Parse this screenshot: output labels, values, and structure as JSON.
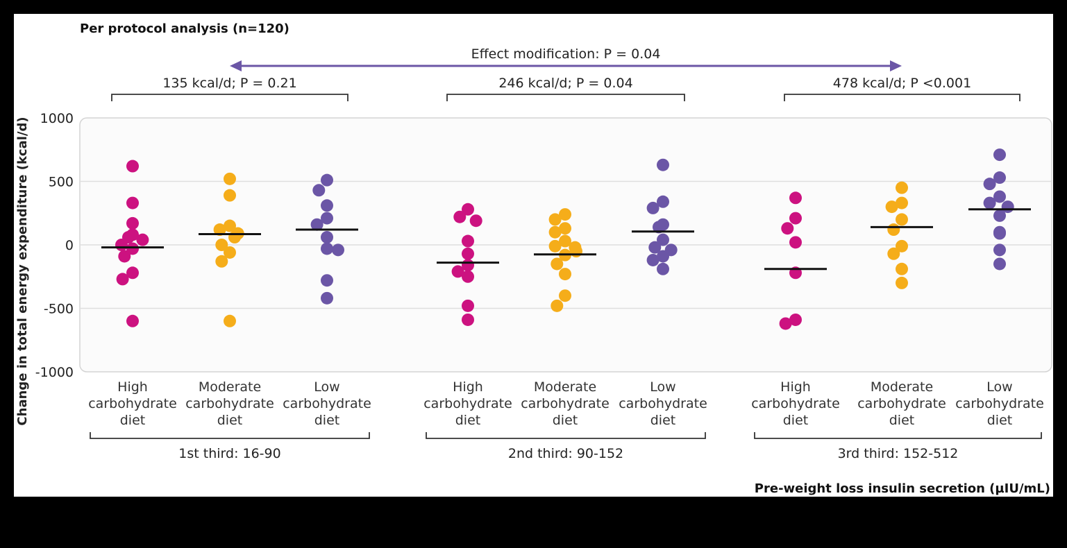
{
  "title": "Per protocol analysis (n=120)",
  "effect_modification": "Effect modification: P = 0.04",
  "x_axis_title": "Pre-weight loss insulin secretion (µIU/mL)",
  "colors": {
    "high": "#cc1280",
    "moderate": "#f5ad1a",
    "low": "#6b56a6",
    "arrow": "#6b56a6",
    "background": "#000000",
    "panel": "#ffffff",
    "plot_area": "#fbfbfb",
    "grid": "#dedede"
  },
  "chart_data": {
    "type": "scatter",
    "title": "Per protocol analysis (n=120)",
    "ylabel": "Change in total energy expenditure (kcal/d)",
    "xlabel": "Pre-weight loss insulin secretion (µIU/mL)",
    "ylim": [
      -1000,
      1000
    ],
    "yticks": [
      1000,
      500,
      0,
      -500,
      -1000
    ],
    "ytick_labels": [
      "1000",
      "500",
      "0",
      "-500",
      "-1000"
    ],
    "grid": true,
    "groups": [
      {
        "name": "1st third: 16-90",
        "comparison": "135 kcal/d; P = 0.21",
        "diets": [
          {
            "diet": "high",
            "label": [
              "High",
              "carbohydrate",
              "diet"
            ],
            "mean": -20,
            "values": [
              620,
              330,
              170,
              80,
              60,
              40,
              0,
              -30,
              -90,
              -220,
              -270,
              -600
            ]
          },
          {
            "diet": "moderate",
            "label": [
              "Moderate",
              "carbohydrate",
              "diet"
            ],
            "mean": 85,
            "values": [
              520,
              390,
              150,
              120,
              90,
              60,
              0,
              -60,
              -130,
              -600
            ]
          },
          {
            "diet": "low",
            "label": [
              "Low",
              "carbohydrate",
              "diet"
            ],
            "mean": 120,
            "values": [
              510,
              430,
              310,
              210,
              160,
              60,
              -30,
              -40,
              -280,
              -420
            ]
          }
        ]
      },
      {
        "name": "2nd third: 90-152",
        "comparison": "246 kcal/d; P = 0.04",
        "diets": [
          {
            "diet": "high",
            "label": [
              "High",
              "carbohydrate",
              "diet"
            ],
            "mean": -140,
            "values": [
              280,
              220,
              190,
              30,
              -70,
              -160,
              -210,
              -250,
              -480,
              -590
            ]
          },
          {
            "diet": "moderate",
            "label": [
              "Moderate",
              "carbohydrate",
              "diet"
            ],
            "mean": -75,
            "values": [
              240,
              200,
              130,
              100,
              30,
              -10,
              -20,
              -50,
              -80,
              -150,
              -230,
              -400,
              -480
            ]
          },
          {
            "diet": "low",
            "label": [
              "Low",
              "carbohydrate",
              "diet"
            ],
            "mean": 105,
            "values": [
              630,
              340,
              290,
              160,
              140,
              40,
              -20,
              -40,
              -90,
              -120,
              -190
            ]
          }
        ]
      },
      {
        "name": "3rd third: 152-512",
        "comparison": "478 kcal/d; P <0.001",
        "diets": [
          {
            "diet": "high",
            "label": [
              "High",
              "carbohydrate",
              "diet"
            ],
            "mean": -190,
            "values": [
              370,
              210,
              130,
              20,
              -220,
              -590,
              -620
            ]
          },
          {
            "diet": "moderate",
            "label": [
              "Moderate",
              "carbohydrate",
              "diet"
            ],
            "mean": 140,
            "values": [
              450,
              330,
              300,
              200,
              120,
              -10,
              -70,
              -190,
              -300
            ]
          },
          {
            "diet": "low",
            "label": [
              "Low",
              "carbohydrate",
              "diet"
            ],
            "mean": 280,
            "values": [
              710,
              530,
              480,
              380,
              330,
              300,
              230,
              100,
              90,
              -40,
              -150
            ]
          }
        ]
      }
    ]
  }
}
